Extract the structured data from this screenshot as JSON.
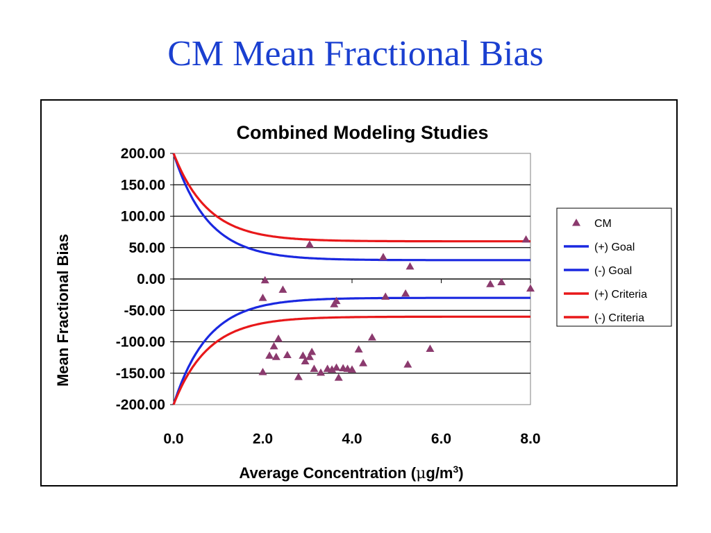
{
  "slide": {
    "title": "CM Mean Fractional Bias"
  },
  "chart_data": {
    "type": "scatter",
    "title": "Combined Modeling Studies",
    "xlabel": {
      "prefix": "Average Concentration (",
      "mu": "μ",
      "unit": "g/m",
      "exp": "3",
      "suffix": ")"
    },
    "ylabel": "Mean Fractional Bias",
    "xlim": [
      0,
      8
    ],
    "ylim": [
      -200,
      200
    ],
    "x_ticks": [
      "0.0",
      "2.0",
      "4.0",
      "6.0",
      "8.0"
    ],
    "y_ticks": [
      "200.00",
      "150.00",
      "100.00",
      "50.00",
      "0.00",
      "-50.00",
      "-100.00",
      "-150.00",
      "-200.00"
    ],
    "grid": true,
    "legend_position": "right",
    "series": [
      {
        "name": "CM",
        "kind": "scatter",
        "marker": "triangle",
        "color": "#8b3a6e",
        "points": [
          [
            2.0,
            -148
          ],
          [
            2.0,
            -30
          ],
          [
            2.05,
            -2
          ],
          [
            2.15,
            -122
          ],
          [
            2.25,
            -107
          ],
          [
            2.3,
            -124
          ],
          [
            2.35,
            -95
          ],
          [
            2.45,
            -17
          ],
          [
            2.55,
            -121
          ],
          [
            2.8,
            -156
          ],
          [
            2.9,
            -122
          ],
          [
            2.95,
            -131
          ],
          [
            3.05,
            -124
          ],
          [
            3.05,
            55
          ],
          [
            3.1,
            -116
          ],
          [
            3.15,
            -143
          ],
          [
            3.3,
            -149
          ],
          [
            3.45,
            -143
          ],
          [
            3.55,
            -144
          ],
          [
            3.6,
            -40
          ],
          [
            3.65,
            -35
          ],
          [
            3.65,
            -141
          ],
          [
            3.7,
            -157
          ],
          [
            3.8,
            -142
          ],
          [
            3.9,
            -143
          ],
          [
            4.0,
            -144
          ],
          [
            4.15,
            -112
          ],
          [
            4.25,
            -134
          ],
          [
            4.45,
            -93
          ],
          [
            4.7,
            35
          ],
          [
            4.75,
            -28
          ],
          [
            5.2,
            -23
          ],
          [
            5.25,
            -136
          ],
          [
            5.3,
            20
          ],
          [
            5.75,
            -111
          ],
          [
            7.1,
            -8
          ],
          [
            7.35,
            -5
          ],
          [
            7.9,
            63
          ],
          [
            8.0,
            -15
          ]
        ]
      },
      {
        "name": "(+) Goal",
        "kind": "line",
        "color": "#1a28e0",
        "asymptote": 30,
        "origin": 200,
        "k": 1.3
      },
      {
        "name": "(-) Goal",
        "kind": "line",
        "color": "#1a28e0",
        "asymptote": -30,
        "origin": -200,
        "k": 1.3
      },
      {
        "name": "(+) Criteria",
        "kind": "line",
        "color": "#e8181a",
        "asymptote": 60,
        "origin": 200,
        "k": 1.3
      },
      {
        "name": "(-) Criteria",
        "kind": "line",
        "color": "#e8181a",
        "asymptote": -60,
        "origin": -200,
        "k": 1.3
      }
    ]
  }
}
